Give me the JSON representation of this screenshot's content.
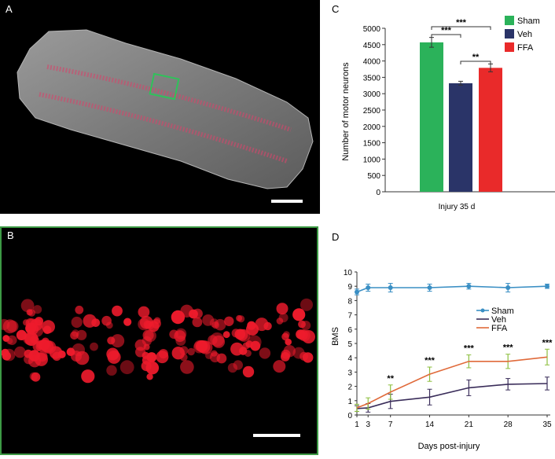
{
  "panels": {
    "a": {
      "letter": "A"
    },
    "b": {
      "letter": "B"
    },
    "c": {
      "letter": "C"
    },
    "d": {
      "letter": "D"
    }
  },
  "chart_data": [
    {
      "id": "C",
      "type": "bar",
      "categories": [
        "Sham",
        "Veh",
        "FFA"
      ],
      "values": [
        4570,
        3320,
        3790
      ],
      "errors": [
        150,
        60,
        120
      ],
      "colors": [
        "#2bb25a",
        "#2a3468",
        "#e92a2a"
      ],
      "ylabel": "Number of motor neurons",
      "xlabel": "Injury 35 d",
      "ylim": [
        0,
        5000
      ],
      "yticks": [
        0,
        500,
        1000,
        1500,
        2000,
        2500,
        3000,
        3500,
        4000,
        4500,
        5000
      ],
      "legend": {
        "position": "top-right",
        "entries": [
          "Sham",
          "Veh",
          "FFA"
        ]
      },
      "significance": [
        {
          "from": 0,
          "to": 2,
          "label": "***"
        },
        {
          "from": 0,
          "to": 1,
          "label": "***"
        },
        {
          "from": 1,
          "to": 2,
          "label": "**"
        }
      ]
    },
    {
      "id": "D",
      "type": "line",
      "x": [
        1,
        3,
        7,
        14,
        21,
        28,
        35
      ],
      "xticks": [
        "1",
        "3",
        "7",
        "14",
        "21",
        "28",
        "35"
      ],
      "series": [
        {
          "name": "Sham",
          "color": "#3a8fc4",
          "marker": "circle",
          "values": [
            8.6,
            8.9,
            8.9,
            8.9,
            9.0,
            8.9,
            9.0
          ],
          "errors": [
            0.2,
            0.25,
            0.3,
            0.25,
            0.2,
            0.3,
            0.15
          ]
        },
        {
          "name": "Veh",
          "color": "#3a2d5a",
          "marker": "none",
          "values": [
            0.45,
            0.5,
            0.95,
            1.25,
            1.9,
            2.15,
            2.2
          ],
          "errors": [
            0.2,
            0.3,
            0.5,
            0.55,
            0.55,
            0.4,
            0.45
          ]
        },
        {
          "name": "FFA",
          "color": "#e06a3a",
          "marker": "none",
          "error_color": "#8dbf3e",
          "values": [
            0.5,
            0.8,
            1.6,
            2.85,
            3.75,
            3.75,
            4.05
          ],
          "errors": [
            0.25,
            0.4,
            0.5,
            0.5,
            0.45,
            0.5,
            0.55
          ]
        }
      ],
      "ylabel": "BMS",
      "xlabel": "Days post-injury",
      "ylim": [
        0,
        10
      ],
      "yticks": [
        0,
        1,
        2,
        3,
        4,
        5,
        6,
        7,
        8,
        9,
        10
      ],
      "legend": {
        "position": "right"
      },
      "annotations": [
        {
          "x": 7,
          "label": "**"
        },
        {
          "x": 14,
          "label": "***"
        },
        {
          "x": 21,
          "label": "***"
        },
        {
          "x": 28,
          "label": "***"
        },
        {
          "x": 35,
          "label": "***"
        }
      ]
    }
  ]
}
